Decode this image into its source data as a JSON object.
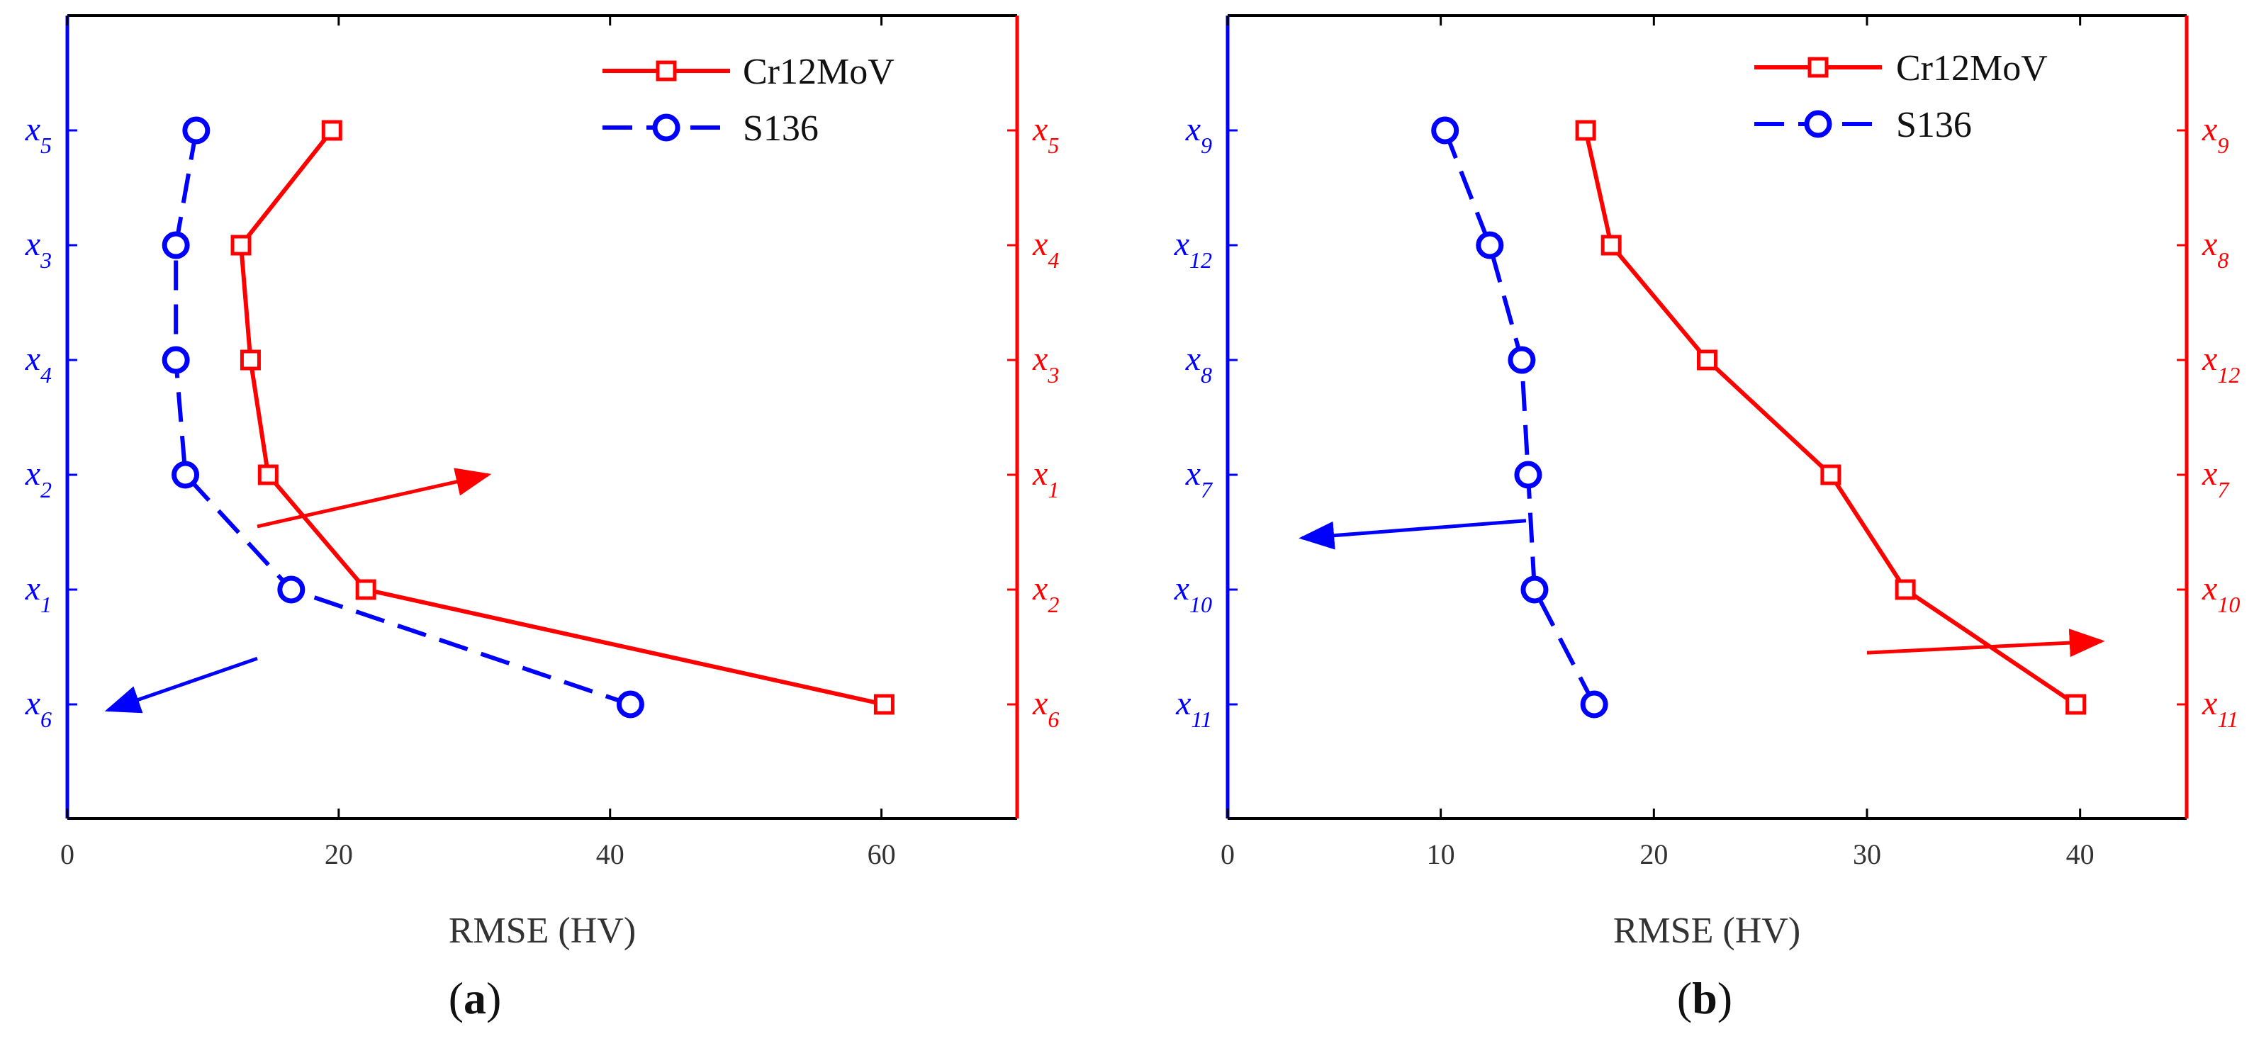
{
  "colors": {
    "red": "#ff0000",
    "blue": "#0000ff",
    "axis": "#000000",
    "text": "#333333"
  },
  "chart_data": [
    {
      "type": "line",
      "panel": "(a)",
      "panel_open": "(",
      "panel_letter": "a",
      "panel_close": ")",
      "xlabel": "RMSE (HV)",
      "xlim": [
        0,
        70
      ],
      "xticks": [
        0,
        20,
        40,
        60
      ],
      "left_ylabels": [
        {
          "base": "x",
          "sub": "5"
        },
        {
          "base": "x",
          "sub": "3"
        },
        {
          "base": "x",
          "sub": "4"
        },
        {
          "base": "x",
          "sub": "2"
        },
        {
          "base": "x",
          "sub": "1"
        },
        {
          "base": "x",
          "sub": "6"
        }
      ],
      "right_ylabels": [
        {
          "base": "x",
          "sub": "5"
        },
        {
          "base": "x",
          "sub": "4"
        },
        {
          "base": "x",
          "sub": "3"
        },
        {
          "base": "x",
          "sub": "1"
        },
        {
          "base": "x",
          "sub": "2"
        },
        {
          "base": "x",
          "sub": "6"
        }
      ],
      "series": [
        {
          "name": "Cr12MoV",
          "color": "#ff0000",
          "marker": "square",
          "dash": "solid",
          "axis": "right",
          "values": [
            19.5,
            12.8,
            13.5,
            14.8,
            22.0,
            60.2
          ]
        },
        {
          "name": "S136",
          "color": "#0000ff",
          "marker": "circle",
          "dash": "dashed",
          "axis": "left",
          "values": [
            9.5,
            8.0,
            8.0,
            8.7,
            16.5,
            41.5
          ]
        }
      ],
      "legend_position": "top-right",
      "arrows": [
        {
          "color": "#ff0000",
          "from": [
            14.0,
            3.45
          ],
          "to": [
            31.0,
            3.0
          ],
          "meaning": "Cr12MoV reads the right axis"
        },
        {
          "color": "#0000ff",
          "from": [
            14.0,
            4.6
          ],
          "to": [
            3.0,
            5.05
          ],
          "meaning": "S136 reads the left axis"
        }
      ]
    },
    {
      "type": "line",
      "panel": "(b)",
      "panel_open": "(",
      "panel_letter": "b",
      "panel_close": ")",
      "xlabel": "RMSE (HV)",
      "xlim": [
        0,
        45
      ],
      "xticks": [
        0,
        10,
        20,
        30,
        40
      ],
      "left_ylabels": [
        {
          "base": "x",
          "sub": "9"
        },
        {
          "base": "x",
          "sub": "12"
        },
        {
          "base": "x",
          "sub": "8"
        },
        {
          "base": "x",
          "sub": "7"
        },
        {
          "base": "x",
          "sub": "10"
        },
        {
          "base": "x",
          "sub": "11"
        }
      ],
      "right_ylabels": [
        {
          "base": "x",
          "sub": "9"
        },
        {
          "base": "x",
          "sub": "8"
        },
        {
          "base": "x",
          "sub": "12"
        },
        {
          "base": "x",
          "sub": "7"
        },
        {
          "base": "x",
          "sub": "10"
        },
        {
          "base": "x",
          "sub": "11"
        }
      ],
      "series": [
        {
          "name": "Cr12MoV",
          "color": "#ff0000",
          "marker": "square",
          "dash": "solid",
          "axis": "right",
          "values": [
            16.8,
            18.0,
            22.5,
            28.3,
            31.8,
            39.8
          ]
        },
        {
          "name": "S136",
          "color": "#0000ff",
          "marker": "circle",
          "dash": "dashed",
          "axis": "left",
          "values": [
            10.2,
            12.3,
            13.8,
            14.1,
            14.4,
            17.2
          ]
        }
      ],
      "legend_position": "top-right",
      "arrows": [
        {
          "color": "#ff0000",
          "from": [
            30.0,
            4.55
          ],
          "to": [
            41.0,
            4.45
          ],
          "meaning": "Cr12MoV reads the right axis"
        },
        {
          "color": "#0000ff",
          "from": [
            14.0,
            3.4
          ],
          "to": [
            3.5,
            3.55
          ],
          "meaning": "S136 reads the left axis"
        }
      ]
    }
  ]
}
